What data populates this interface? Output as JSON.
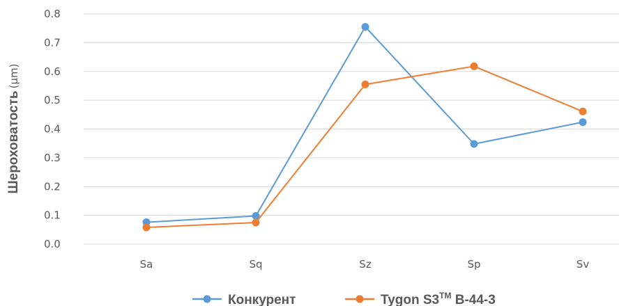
{
  "chart_data": {
    "type": "line",
    "categories": [
      "Sa",
      "Sq",
      "Sz",
      "Sp",
      "Sv"
    ],
    "series": [
      {
        "name": "Конкурент",
        "color": "#5B9BD5",
        "values": [
          0.076,
          0.098,
          0.755,
          0.348,
          0.424
        ]
      },
      {
        "name_main": "Tygon S3",
        "name_sup": "TM",
        "name_rest": " B-44-3",
        "color": "#ED7D31",
        "values": [
          0.058,
          0.075,
          0.555,
          0.618,
          0.461
        ]
      }
    ],
    "yticks": [
      "0.0",
      "0.1",
      "0.2",
      "0.3",
      "0.4",
      "0.5",
      "0.6",
      "0.7",
      "0.8"
    ],
    "ylim": [
      0,
      0.8
    ],
    "ylabel": "Шероховатость",
    "ylabel_unit": "(µm)",
    "grid": true,
    "legend_position": "bottom",
    "gridline_color": "#D9D9D9"
  }
}
